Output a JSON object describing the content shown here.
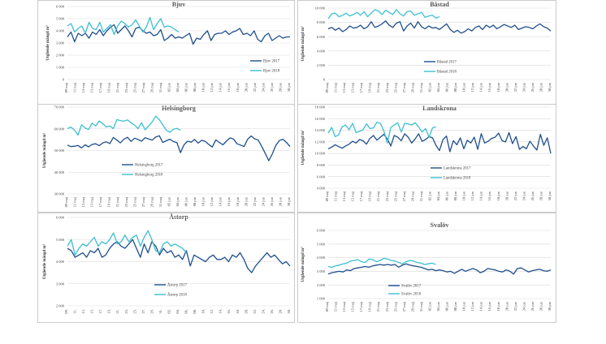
{
  "colors": {
    "series2017": "#1f4e8c",
    "series2018": "#3dbfd1",
    "grid": "#d9d9d9",
    "frame": "#bfbfbf",
    "text": "#444444",
    "title": "#555555"
  },
  "x_labels": [
    "09 maj",
    "11 maj",
    "13 maj",
    "15 maj",
    "17 maj",
    "19 maj",
    "21 maj",
    "23 maj",
    "25 maj",
    "27 maj",
    "29 maj",
    "31 maj",
    "02 jun",
    "04 jun",
    "06 jun",
    "08 jun",
    "10 jun",
    "12 jun",
    "14 jun",
    "16 jun",
    "18 jun",
    "20 jun",
    "22 jun",
    "24 jun",
    "26 jun",
    "28 jun",
    "30 jun"
  ],
  "x_labels_astorp": [
    "09.",
    "11.",
    "13.",
    "15.",
    "17.",
    "19.",
    "21.",
    "23.",
    "25.",
    "27.",
    "29.",
    "31.",
    "02.",
    "04.",
    "06.",
    "08.",
    "10.",
    "12.",
    "14.",
    "16.",
    "18.",
    "20.",
    "22.",
    "24.",
    "26.",
    "28.",
    "30."
  ],
  "chart_data": [
    {
      "type": "line",
      "title": "Bjuv",
      "ylabel": "Utgående mängd m³",
      "ylim": [
        0,
        6000
      ],
      "yticks": [
        "0",
        "1 000",
        "2 000",
        "3 000",
        "4 000",
        "5 000",
        "6 000"
      ],
      "legend": [
        "Bjuv 2017",
        "Bjuv 2018"
      ],
      "legend_position": "right",
      "series": [
        {
          "name": "Bjuv 2017",
          "values": [
            3500,
            3900,
            3100,
            3800,
            3600,
            3800,
            3400,
            3900,
            3700,
            4100,
            3600,
            4000,
            4300,
            4500,
            3800,
            4100,
            4400,
            4000,
            3500,
            4200,
            4300,
            4000,
            3800,
            3900,
            3600,
            3700,
            4100,
            3200,
            3400,
            3700,
            3400,
            3500,
            3400,
            3600,
            3800,
            2900,
            3400,
            3300,
            3700,
            4000,
            3200,
            3700,
            3800,
            3800,
            4000,
            3700,
            3900,
            4000,
            4200,
            3700,
            3800,
            3600,
            4000,
            3300,
            3100,
            3600,
            3800,
            3200,
            3400,
            3600,
            3400,
            3500,
            3500
          ]
        },
        {
          "name": "Bjuv 2018",
          "values": [
            4400,
            4600,
            3900,
            4200,
            4400,
            3800,
            4700,
            4200,
            4100,
            4700,
            3900,
            4200,
            4500,
            3700,
            4400,
            4800,
            4600,
            4300,
            4500,
            4900,
            4400,
            3900,
            4300,
            5100,
            4100,
            4600,
            5000,
            4300,
            4400,
            4300,
            4100,
            3900
          ]
        }
      ]
    },
    {
      "type": "line",
      "title": "Båstad",
      "ylabel": "Utgående mängd m³",
      "ylim": [
        0,
        10000
      ],
      "yticks": [
        "0",
        "2 000",
        "4 000",
        "6 000",
        "8 000",
        "10 000"
      ],
      "legend": [
        "Båstad 2017",
        "Båstad 2018"
      ],
      "legend_position": "right",
      "series": [
        {
          "name": "Båstad 2017",
          "values": [
            7100,
            7300,
            6900,
            7200,
            6700,
            7000,
            7500,
            7200,
            7300,
            7600,
            7100,
            7400,
            8100,
            7300,
            7500,
            7800,
            8200,
            7600,
            7300,
            7900,
            8100,
            6800,
            7500,
            7900,
            7200,
            8100,
            7400,
            7100,
            7500,
            7200,
            7300,
            7000,
            7400,
            7800,
            7000,
            6600,
            6900,
            6500,
            6700,
            7100,
            6800,
            7300,
            7500,
            7000,
            7600,
            7300,
            7600,
            7100,
            7400,
            7700,
            7500,
            7300,
            7600,
            7000,
            7200,
            7400,
            7300,
            7100,
            7500,
            7800,
            7400,
            7200,
            6800
          ]
        },
        {
          "name": "Båstad 2018",
          "values": [
            8500,
            9200,
            9300,
            8800,
            9000,
            9300,
            8900,
            9100,
            9400,
            9000,
            9500,
            8800,
            9300,
            9800,
            9600,
            9100,
            9700,
            9400,
            9100,
            9800,
            9200,
            8900,
            9500,
            9600,
            9000,
            9200,
            9400,
            8700,
            8900,
            9000,
            8600,
            8800
          ]
        }
      ]
    },
    {
      "type": "line",
      "title": "Helsingborg",
      "ylabel": "Utgående mängd m³",
      "ylim": [
        30000,
        70000
      ],
      "yticks": [
        "30 000",
        "40 000",
        "50 000",
        "60 000",
        "70 000"
      ],
      "legend": [
        "Helsingborg 2017",
        "Helsingborg 2018"
      ],
      "legend_position": "bottom-left",
      "series": [
        {
          "name": "Helsingborg 2017",
          "values": [
            52500,
            51800,
            52000,
            52300,
            51200,
            52600,
            51700,
            52800,
            53100,
            52200,
            53500,
            54000,
            53200,
            56000,
            54800,
            53500,
            55200,
            56100,
            54200,
            55700,
            55100,
            54300,
            55900,
            55300,
            54800,
            56200,
            56800,
            53700,
            54500,
            55200,
            54100,
            53600,
            49000,
            52600,
            54300,
            53800,
            55100,
            53400,
            54700,
            54200,
            52800,
            51600,
            54900,
            53700,
            52600,
            54300,
            55800,
            55300,
            53100,
            52500,
            51800,
            55200,
            56700,
            55400,
            54800,
            51900,
            48600,
            45300,
            48500,
            52400,
            54600,
            55200,
            53700,
            51800
          ]
        },
        {
          "name": "Helsingborg 2018",
          "values": [
            60100,
            60800,
            59400,
            57100,
            61800,
            60400,
            59700,
            62600,
            61300,
            63600,
            62400,
            60800,
            61300,
            60100,
            64200,
            63800,
            63500,
            64100,
            62800,
            61700,
            60100,
            62800,
            59500,
            61300,
            63200,
            65800,
            64200,
            61800,
            59300,
            58400,
            59800,
            60200,
            59300
          ]
        }
      ]
    },
    {
      "type": "line",
      "title": "Landskrona",
      "ylabel": "Utgående mängd m³",
      "ylim": [
        4000,
        18000
      ],
      "yticks": [
        "4 000",
        "6 000",
        "8 000",
        "10 000",
        "12 000",
        "14 000",
        "16 000",
        "18 000"
      ],
      "legend": [
        "Landskrona 2017",
        "Landskrona 2018"
      ],
      "legend_position": "bottom-left",
      "series": [
        {
          "name": "Landskrona 2017",
          "values": [
            10800,
            11100,
            11500,
            11200,
            10900,
            11300,
            11600,
            12100,
            11800,
            12400,
            12200,
            11600,
            12600,
            13100,
            12300,
            12800,
            13300,
            12500,
            11300,
            13100,
            12800,
            12200,
            13400,
            12800,
            11800,
            12500,
            13400,
            12100,
            12400,
            12900,
            12700,
            11400,
            10500,
            12400,
            13000,
            10300,
            12200,
            11500,
            12700,
            10800,
            12300,
            11800,
            12800,
            10700,
            13400,
            11800,
            12100,
            12600,
            12800,
            13500,
            12200,
            12000,
            13600,
            11700,
            12900,
            10700,
            11200,
            10800,
            12100,
            11300,
            10600,
            13300,
            11400,
            12700,
            10000
          ]
        },
        {
          "name": "Landskrona 2018",
          "values": [
            13500,
            14500,
            12900,
            13200,
            14600,
            14900,
            14100,
            15200,
            13600,
            13800,
            14100,
            15100,
            14300,
            14400,
            15400,
            15200,
            13900,
            11800,
            14500,
            14900,
            15300,
            13700,
            15200,
            15100,
            14900,
            15300,
            14600,
            13700,
            14300,
            12800,
            14400,
            14600
          ]
        }
      ]
    },
    {
      "type": "line",
      "title": "Åstorp",
      "ylabel": "Utgående mängd m³",
      "ylim": [
        2000,
        6000
      ],
      "yticks": [
        "2 000",
        "3 000",
        "4 000",
        "5 000",
        "6 000"
      ],
      "legend": [
        "Åstorp 2017",
        "Åstorp 2018"
      ],
      "legend_position": "bottom-center",
      "series": [
        {
          "name": "Åstorp 2017",
          "values": [
            4600,
            4500,
            4200,
            4300,
            4400,
            4200,
            4500,
            4400,
            4600,
            4200,
            4300,
            4600,
            4800,
            4900,
            4700,
            4600,
            4800,
            5000,
            4600,
            4200,
            4800,
            4400,
            4900,
            4700,
            4300,
            4600,
            4400,
            4500,
            4200,
            4300,
            4100,
            4500,
            3800,
            4300,
            4200,
            4100,
            4000,
            4200,
            4300,
            4100,
            4100,
            4200,
            4000,
            4300,
            4200,
            4400,
            4100,
            3700,
            3500,
            3800,
            4000,
            4200,
            4400,
            4200,
            4300,
            4100,
            3900,
            4000,
            3800
          ]
        },
        {
          "name": "Åstorp 2018",
          "values": [
            4700,
            5000,
            4300,
            4600,
            4800,
            4700,
            4900,
            5100,
            4700,
            4900,
            4800,
            5000,
            5300,
            4800,
            4900,
            5200,
            4900,
            5100,
            5200,
            4700,
            5100,
            5400,
            5000,
            4500,
            4400,
            4800,
            4900,
            4700,
            4800,
            4700,
            4600,
            4400
          ]
        }
      ]
    },
    {
      "type": "line",
      "title": "Svalöv",
      "ylabel": "Utgående mängd m³",
      "ylim": [
        1000,
        6000
      ],
      "yticks": [
        "1 000",
        "2 000",
        "3 000",
        "4 000",
        "5 000",
        "6 000"
      ],
      "legend": [
        "Svalöv 2017",
        "Svalöv 2018"
      ],
      "legend_position": "bottom-center",
      "series": [
        {
          "name": "Svalöv 2017",
          "values": [
            2800,
            2900,
            2950,
            3000,
            2950,
            3100,
            3050,
            3200,
            3250,
            3300,
            3350,
            3300,
            3400,
            3450,
            3500,
            3450,
            3500,
            3450,
            3500,
            3300,
            3450,
            3550,
            3450,
            3400,
            3350,
            3300,
            3200,
            3100,
            3150,
            3050,
            3100,
            3050,
            2950,
            3000,
            2850,
            3000,
            3150,
            3000,
            3100,
            3200,
            3100,
            2900,
            3000,
            3200,
            3150,
            3100,
            3000,
            2950,
            3100,
            3000,
            2800,
            3200,
            3250,
            3100,
            2950,
            3050,
            3100,
            3150,
            3050,
            3000,
            3100
          ]
        },
        {
          "name": "Svalöv 2018",
          "values": [
            3350,
            3300,
            3400,
            3450,
            3550,
            3600,
            3750,
            3800,
            3850,
            3700,
            3650,
            3900,
            3850,
            3700,
            3800,
            3950,
            3900,
            3800,
            3750,
            3650,
            3550,
            3700,
            3800,
            3750,
            3650,
            3600,
            3500,
            3550,
            3600,
            3500
          ]
        }
      ]
    }
  ]
}
